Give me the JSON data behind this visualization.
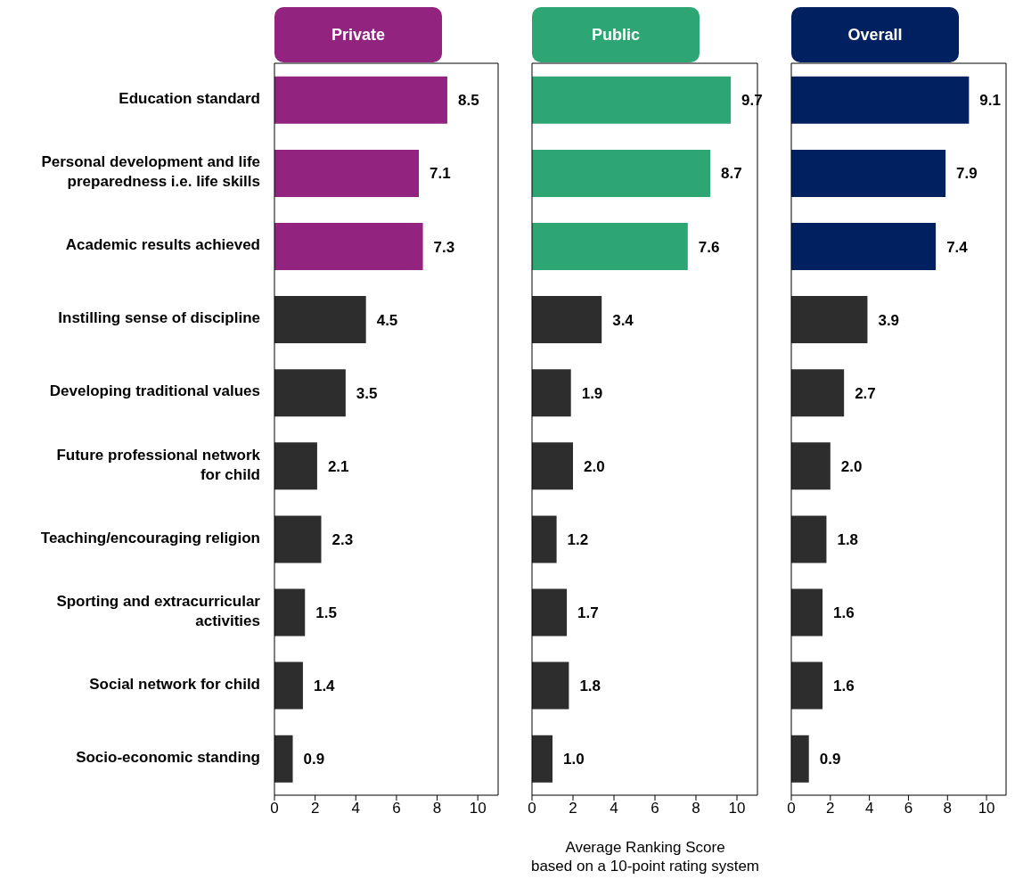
{
  "chart_data": [
    {
      "type": "bar",
      "orientation": "horizontal",
      "title": "Private",
      "categories": [
        "Education standard",
        "Personal development and life preparedness i.e. life skills",
        "Academic results achieved",
        "Instilling sense of discipline",
        "Developing traditional values",
        "Future professional network for child",
        "Teaching/encouraging religion",
        "Sporting and extracurricular activities",
        "Social network for child",
        "Socio-economic standing"
      ],
      "values": [
        8.5,
        7.1,
        7.3,
        4.5,
        3.5,
        2.1,
        2.3,
        1.5,
        1.4,
        0.9
      ],
      "value_labels": [
        "8.5",
        "7.1",
        "7.3",
        "4.5",
        "3.5",
        "2.1",
        "2.3",
        "1.5",
        "1.4",
        "0.9"
      ],
      "colors": [
        "#92237f",
        "#92237f",
        "#92237f",
        "#2d2d2d",
        "#2d2d2d",
        "#2d2d2d",
        "#2d2d2d",
        "#2d2d2d",
        "#2d2d2d",
        "#2d2d2d"
      ],
      "xlim": [
        0,
        11
      ],
      "xticks": [
        0,
        2,
        4,
        6,
        8,
        10
      ],
      "grid": false
    },
    {
      "type": "bar",
      "orientation": "horizontal",
      "title": "Public",
      "xlabel": "Average Ranking Score\nbased on a 10-point rating system",
      "tick_labels": "x",
      "categories": [
        null,
        null,
        null,
        null,
        null,
        null,
        null,
        null,
        null,
        null
      ],
      "values": [
        9.7,
        8.7,
        7.6,
        3.4,
        1.9,
        2.0,
        1.2,
        1.7,
        1.8,
        1.0
      ],
      "value_labels": [
        "9.7",
        "8.7",
        "7.6",
        "3.4",
        "1.9",
        "2.0",
        "1.2",
        "1.7",
        "1.8",
        "1.0"
      ],
      "colors": [
        "#2ea673",
        "#2ea673",
        "#2ea673",
        "#2d2d2d",
        "#2d2d2d",
        "#2d2d2d",
        "#2d2d2d",
        "#2d2d2d",
        "#2d2d2d",
        "#2d2d2d"
      ],
      "xlim": [
        0,
        11
      ],
      "xticks": [
        0,
        2,
        4,
        6,
        8,
        10
      ],
      "grid": false
    },
    {
      "type": "bar",
      "orientation": "horizontal",
      "title": "Overall",
      "tick_labels": "x",
      "categories": [
        null,
        null,
        null,
        null,
        null,
        null,
        null,
        null,
        null,
        null
      ],
      "values": [
        9.1,
        7.9,
        7.4,
        3.9,
        2.7,
        2.0,
        1.8,
        1.6,
        1.6,
        0.9
      ],
      "value_labels": [
        "9.1",
        "7.9",
        "7.4",
        "3.9",
        "2.7",
        "2.0",
        "1.8",
        "1.6",
        "1.6",
        "0.9"
      ],
      "colors": [
        "#002060",
        "#002060",
        "#002060",
        "#2d2d2d",
        "#2d2d2d",
        "#2d2d2d",
        "#2d2d2d",
        "#2d2d2d",
        "#2d2d2d",
        "#2d2d2d"
      ],
      "xlim": [
        0,
        11
      ],
      "xticks": [
        0,
        2,
        4,
        6,
        8,
        10
      ],
      "grid": false
    }
  ]
}
